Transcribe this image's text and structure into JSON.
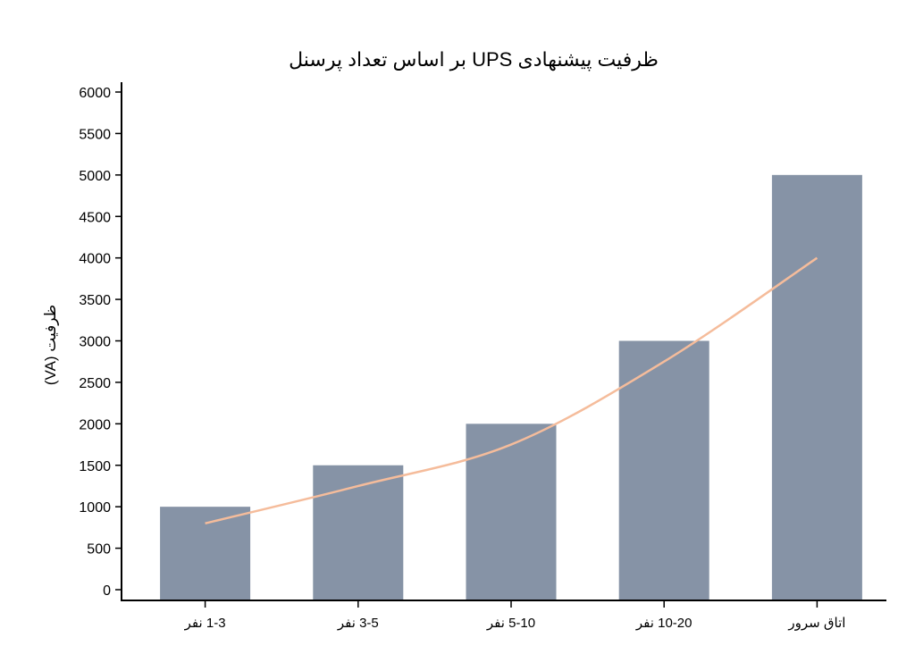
{
  "chart_data": {
    "type": "bar",
    "title": "ظرفیت پیشنهادی UPS بر اساس تعداد پرسنل",
    "xlabel": "",
    "ylabel": "ظرفیت (VA)",
    "categories": [
      "1-3 نفر",
      "3-5 نفر",
      "5-10 نفر",
      "10-20 نفر",
      "اتاق سرور"
    ],
    "series": [
      {
        "type": "bar",
        "values": [
          1000,
          1500,
          2000,
          3000,
          5000
        ],
        "color": "#8693a6"
      },
      {
        "type": "line",
        "values": [
          800,
          1250,
          1750,
          2750,
          4000
        ],
        "color": "#f5bc9b"
      }
    ],
    "ylim": [
      0,
      6000
    ],
    "yticks": [
      0,
      500,
      1000,
      1500,
      2000,
      2500,
      3000,
      3500,
      4000,
      4500,
      5000,
      5500,
      6000
    ],
    "grid": false,
    "legend": "none"
  }
}
